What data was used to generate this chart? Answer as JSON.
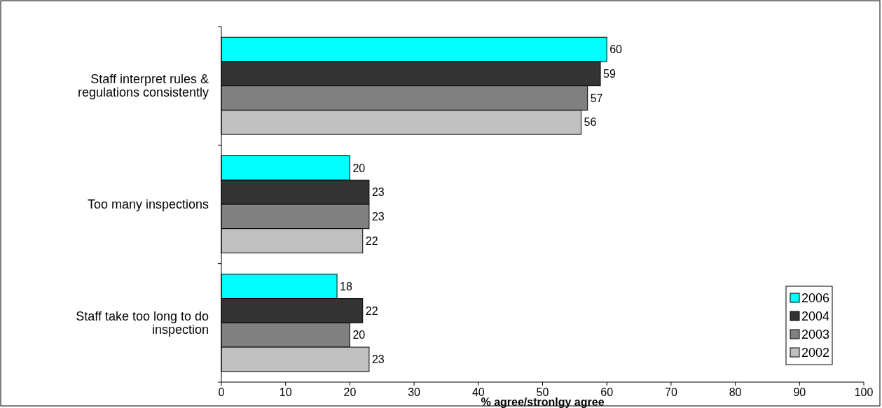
{
  "chart_data": {
    "type": "bar",
    "orientation": "horizontal",
    "xlabel": "% agree/stronlgy agree",
    "categories": [
      "Staff interpret rules & regulations consistently",
      "Too many inspections",
      "Staff take too long to do inspection"
    ],
    "series": [
      {
        "name": "2006",
        "color": "#00ffff",
        "values": [
          60,
          20,
          18
        ]
      },
      {
        "name": "2004",
        "color": "#333333",
        "values": [
          59,
          23,
          22
        ]
      },
      {
        "name": "2003",
        "color": "#808080",
        "values": [
          57,
          23,
          20
        ]
      },
      {
        "name": "2002",
        "color": "#c0c0c0",
        "values": [
          56,
          22,
          23
        ]
      }
    ],
    "xlim": [
      0,
      100
    ],
    "xticks": [
      0,
      10,
      20,
      30,
      40,
      50,
      60,
      70,
      80,
      90,
      100
    ],
    "data_labels": true,
    "legend": "bottom right",
    "grid": false
  }
}
